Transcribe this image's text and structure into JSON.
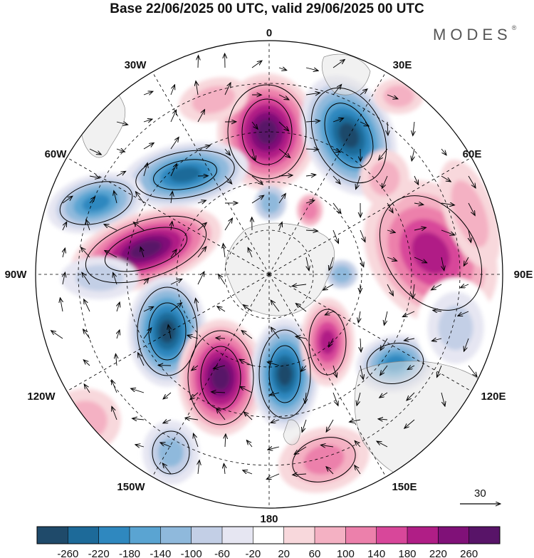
{
  "title": "Base 22/06/2025 00 UTC, valid 29/06/2025 00 UTC",
  "brand": "MODES",
  "brand_mark": "®",
  "map": {
    "projection": "south-polar-stereographic",
    "longitude_labels": [
      "0",
      "30E",
      "60E",
      "90E",
      "120E",
      "150E",
      "180",
      "150W",
      "120W",
      "90W",
      "60W",
      "30W"
    ],
    "vector_reference": "30"
  },
  "colorbar": {
    "colors": [
      "#1f4a6a",
      "#1d6a99",
      "#2f88bf",
      "#5aa4d2",
      "#8fb9dc",
      "#c3cfe6",
      "#e6e6f2",
      "#ffffff",
      "#f8d8dc",
      "#f4b1c3",
      "#ec80ab",
      "#d8479a",
      "#b01e86",
      "#801178",
      "#581468"
    ],
    "tick_labels": [
      "-260",
      "-220",
      "-180",
      "-140",
      "-100",
      "-60",
      "-20",
      "20",
      "60",
      "100",
      "140",
      "180",
      "220",
      "260"
    ]
  },
  "colors": {
    "land": "#e6e6e6",
    "coast": "#8a8a8a",
    "contour": "#000000"
  }
}
